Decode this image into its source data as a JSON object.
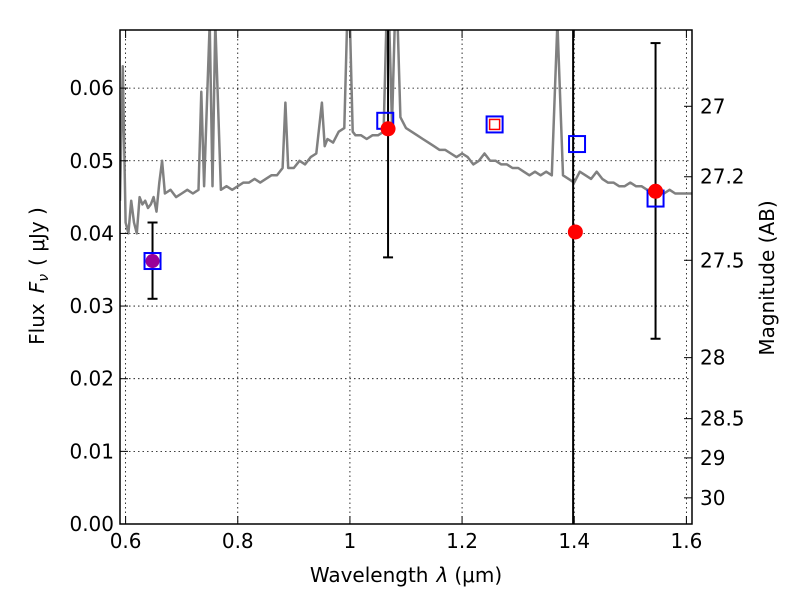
{
  "chart_data": {
    "type": "scatter",
    "xlabel": "Wavelength",
    "xlabel_symbol": "λ",
    "xlabel_unit": "(μm)",
    "ylabel": "Flux",
    "ylabel_symbol": "F",
    "ylabel_subscript": "ν",
    "ylabel_unit": "( μJy )",
    "y2label": "Magnitude (AB)",
    "xlim": [
      0.59,
      1.61
    ],
    "ylim": [
      0.0,
      0.068
    ],
    "grid": true,
    "x_ticks": [
      0.6,
      0.8,
      1.0,
      1.2,
      1.4,
      1.6
    ],
    "x_tick_labels": [
      "0.6",
      "0.8",
      "1",
      "1.2",
      "1.4",
      "1.6"
    ],
    "y_ticks": [
      0.0,
      0.01,
      0.02,
      0.03,
      0.04,
      0.05,
      0.06
    ],
    "y_tick_labels": [
      "0.00",
      "0.01",
      "0.02",
      "0.03",
      "0.04",
      "0.05",
      "0.06"
    ],
    "y2_ticks": [
      {
        "label": "27",
        "flux": 0.0575
      },
      {
        "label": "27.2",
        "flux": 0.0478
      },
      {
        "label": "27.5",
        "flux": 0.0363
      },
      {
        "label": "28",
        "flux": 0.0229
      },
      {
        "label": "28.5",
        "flux": 0.0145
      },
      {
        "label": "29",
        "flux": 0.0091
      },
      {
        "label": "30",
        "flux": 0.0036
      }
    ],
    "series": [
      {
        "kind": "model_spectrum",
        "color": "#808080",
        "x": [
          0.59,
          0.595,
          0.6,
          0.605,
          0.61,
          0.615,
          0.62,
          0.625,
          0.63,
          0.635,
          0.64,
          0.645,
          0.65,
          0.655,
          0.66,
          0.665,
          0.67,
          0.68,
          0.69,
          0.7,
          0.71,
          0.72,
          0.73,
          0.735,
          0.74,
          0.75,
          0.755,
          0.76,
          0.77,
          0.78,
          0.79,
          0.8,
          0.81,
          0.82,
          0.83,
          0.84,
          0.85,
          0.86,
          0.87,
          0.88,
          0.885,
          0.89,
          0.9,
          0.91,
          0.92,
          0.93,
          0.94,
          0.95,
          0.955,
          0.96,
          0.97,
          0.98,
          0.99,
          0.995,
          1.0,
          1.005,
          1.01,
          1.02,
          1.03,
          1.04,
          1.05,
          1.06,
          1.065,
          1.07,
          1.075,
          1.08,
          1.085,
          1.09,
          1.1,
          1.11,
          1.12,
          1.13,
          1.14,
          1.15,
          1.16,
          1.17,
          1.18,
          1.19,
          1.2,
          1.21,
          1.22,
          1.23,
          1.24,
          1.25,
          1.26,
          1.27,
          1.28,
          1.29,
          1.3,
          1.31,
          1.32,
          1.33,
          1.34,
          1.35,
          1.36,
          1.37,
          1.38,
          1.39,
          1.4,
          1.41,
          1.42,
          1.43,
          1.44,
          1.45,
          1.46,
          1.47,
          1.48,
          1.49,
          1.5,
          1.51,
          1.52,
          1.53,
          1.54,
          1.55,
          1.56,
          1.57,
          1.58,
          1.59,
          1.6,
          1.61
        ],
        "y": [
          0.0445,
          0.063,
          0.0415,
          0.04,
          0.0445,
          0.0415,
          0.04,
          0.045,
          0.044,
          0.0445,
          0.0435,
          0.044,
          0.045,
          0.043,
          0.047,
          0.05,
          0.0455,
          0.046,
          0.045,
          0.0455,
          0.046,
          0.0455,
          0.046,
          0.0595,
          0.0465,
          0.069,
          0.0465,
          0.069,
          0.046,
          0.0465,
          0.046,
          0.0465,
          0.047,
          0.047,
          0.0475,
          0.047,
          0.0475,
          0.048,
          0.048,
          0.049,
          0.058,
          0.049,
          0.049,
          0.05,
          0.0495,
          0.0505,
          0.051,
          0.058,
          0.052,
          0.053,
          0.0525,
          0.054,
          0.0545,
          0.069,
          0.069,
          0.054,
          0.0535,
          0.0535,
          0.053,
          0.0535,
          0.0535,
          0.054,
          0.069,
          0.069,
          0.055,
          0.069,
          0.069,
          0.056,
          0.0545,
          0.054,
          0.0535,
          0.053,
          0.0525,
          0.052,
          0.0515,
          0.0515,
          0.051,
          0.0505,
          0.051,
          0.0505,
          0.0495,
          0.05,
          0.051,
          0.05,
          0.05,
          0.0495,
          0.0495,
          0.049,
          0.049,
          0.0485,
          0.048,
          0.0485,
          0.048,
          0.0485,
          0.048,
          0.069,
          0.048,
          0.0475,
          0.047,
          0.0485,
          0.048,
          0.0475,
          0.0485,
          0.0475,
          0.047,
          0.047,
          0.0465,
          0.0465,
          0.047,
          0.0465,
          0.0465,
          0.046,
          0.046,
          0.0465,
          0.0455,
          0.046,
          0.0455,
          0.0455,
          0.0455,
          0.0455
        ]
      },
      {
        "kind": "observed",
        "marker": "circle",
        "color": "#ff0000",
        "x": [
          0.648,
          1.068,
          1.402,
          1.545
        ],
        "y": [
          0.0362,
          0.0544,
          0.0402,
          0.0458
        ],
        "yerr_low": [
          0.031,
          0.0367,
          null,
          0.0255
        ],
        "yerr_high": [
          0.0415,
          0.069,
          null,
          0.0662
        ]
      },
      {
        "kind": "model_photometry",
        "marker": "square",
        "color": "#0000ff",
        "x": [
          0.648,
          1.063,
          1.258,
          1.405,
          1.545
        ],
        "y": [
          0.0362,
          0.0555,
          0.055,
          0.0523,
          0.0448
        ]
      }
    ],
    "vertical_lines": [
      1.398
    ],
    "annotations": [
      {
        "kind": "small_square",
        "color": "#ff0000",
        "x": 1.258,
        "y": 0.055
      },
      {
        "kind": "fill",
        "color": "#990099",
        "x": 0.648,
        "y": 0.0362
      }
    ]
  }
}
